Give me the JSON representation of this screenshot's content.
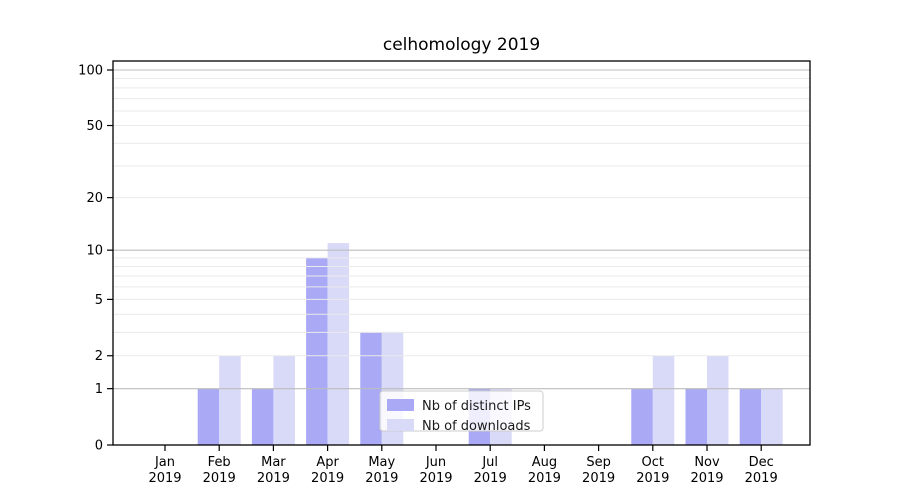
{
  "chart_data": {
    "type": "bar",
    "title": "celhomology 2019",
    "categories": [
      "Jan",
      "Feb",
      "Mar",
      "Apr",
      "May",
      "Jun",
      "Jul",
      "Aug",
      "Sep",
      "Oct",
      "Nov",
      "Dec"
    ],
    "category_second_line": "2019",
    "series": [
      {
        "name": "Nb of distinct IPs",
        "color": "#a9a9f5",
        "values": [
          0,
          1,
          1,
          9,
          3,
          0,
          1,
          0,
          0,
          1,
          1,
          1
        ]
      },
      {
        "name": "Nb of downloads",
        "color": "#d9d9f8",
        "values": [
          0,
          2,
          2,
          11,
          3,
          0,
          1,
          0,
          0,
          2,
          2,
          1
        ]
      }
    ],
    "xlabel": "",
    "ylabel": "",
    "y_scale": "log1p",
    "ylim": [
      0,
      112
    ],
    "y_ticks": [
      0,
      1,
      2,
      5,
      10,
      20,
      50,
      100
    ],
    "y_major_gridlines": [
      1,
      10,
      100
    ],
    "y_minor_gridlines": [
      2,
      3,
      4,
      5,
      6,
      7,
      8,
      9,
      20,
      30,
      40,
      50,
      60,
      70,
      80,
      90
    ],
    "grid": true,
    "legend_position": "lower center",
    "colors": {
      "spine": "#000000",
      "major_grid": "#bdbdbd",
      "minor_grid": "#eaeaea",
      "tick_label": "#000000",
      "legend_border": "#cccccc",
      "legend_bg": "#ffffff"
    }
  }
}
